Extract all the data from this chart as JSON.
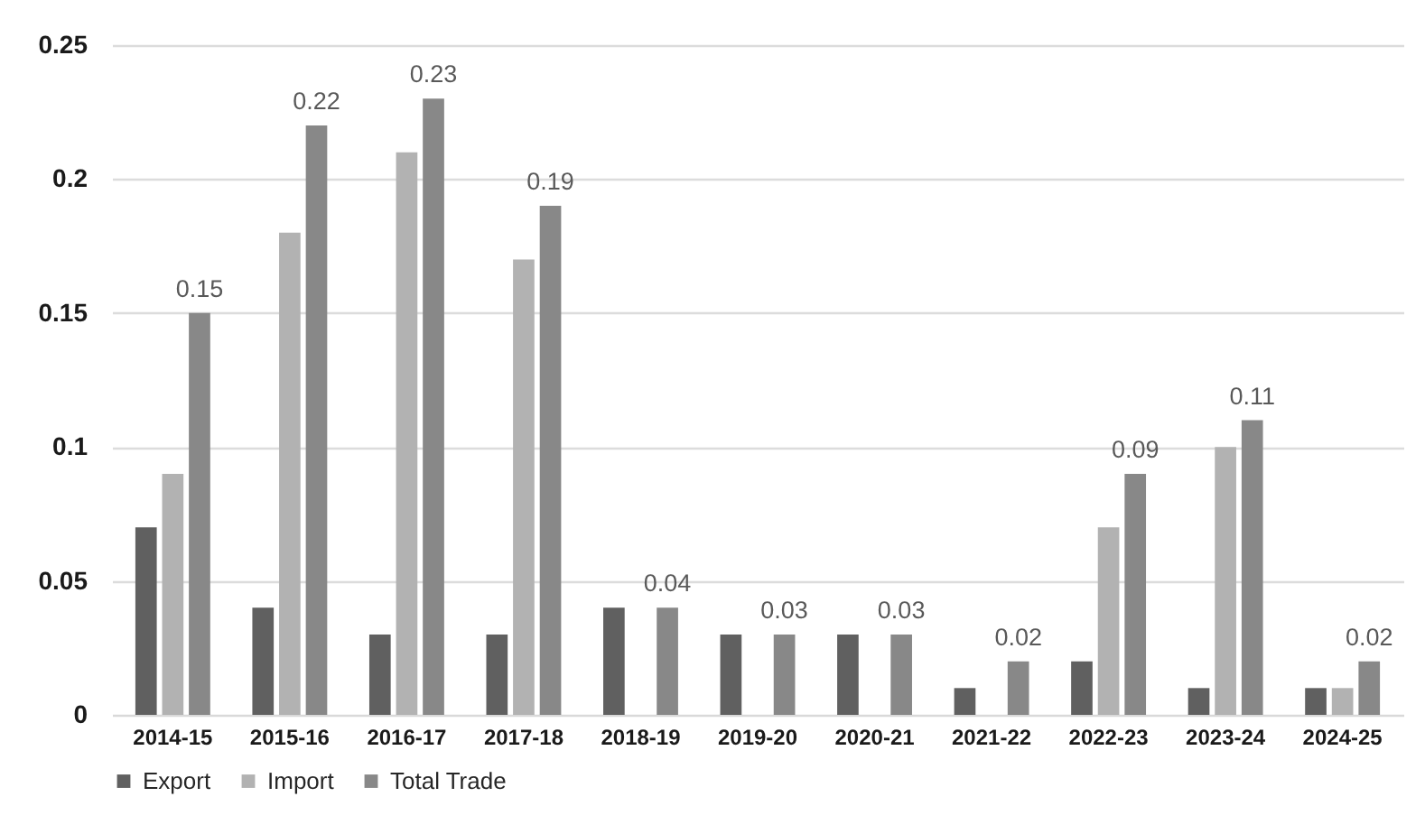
{
  "chart_data": {
    "type": "bar",
    "categories": [
      "2014-15",
      "2015-16",
      "2016-17",
      "2017-18",
      "2018-19",
      "2019-20",
      "2020-21",
      "2021-22",
      "2022-23",
      "2023-24",
      "2024-25"
    ],
    "series": [
      {
        "name": "Export",
        "color": "#606060",
        "values": [
          0.07,
          0.04,
          0.03,
          0.03,
          0.04,
          0.03,
          0.03,
          0.01,
          0.02,
          0.01,
          0.01
        ]
      },
      {
        "name": "Import",
        "color": "#b2b2b2",
        "values": [
          0.09,
          0.18,
          0.21,
          0.17,
          null,
          null,
          null,
          null,
          0.07,
          0.1,
          0.01
        ]
      },
      {
        "name": "Total Trade",
        "color": "#888888",
        "values": [
          0.15,
          0.22,
          0.23,
          0.19,
          0.04,
          0.03,
          0.03,
          0.02,
          0.09,
          0.11,
          0.02
        ],
        "value_labels": [
          "0.15",
          "0.22",
          "0.23",
          "0.19",
          "0.04",
          "0.03",
          "0.03",
          "0.02",
          "0.09",
          "0.11",
          "0.02"
        ]
      }
    ],
    "ylim": [
      0,
      0.25
    ],
    "yticks": [
      0,
      0.05,
      0.1,
      0.15,
      0.2,
      0.25
    ],
    "grid": "y",
    "legend": "bottom"
  }
}
